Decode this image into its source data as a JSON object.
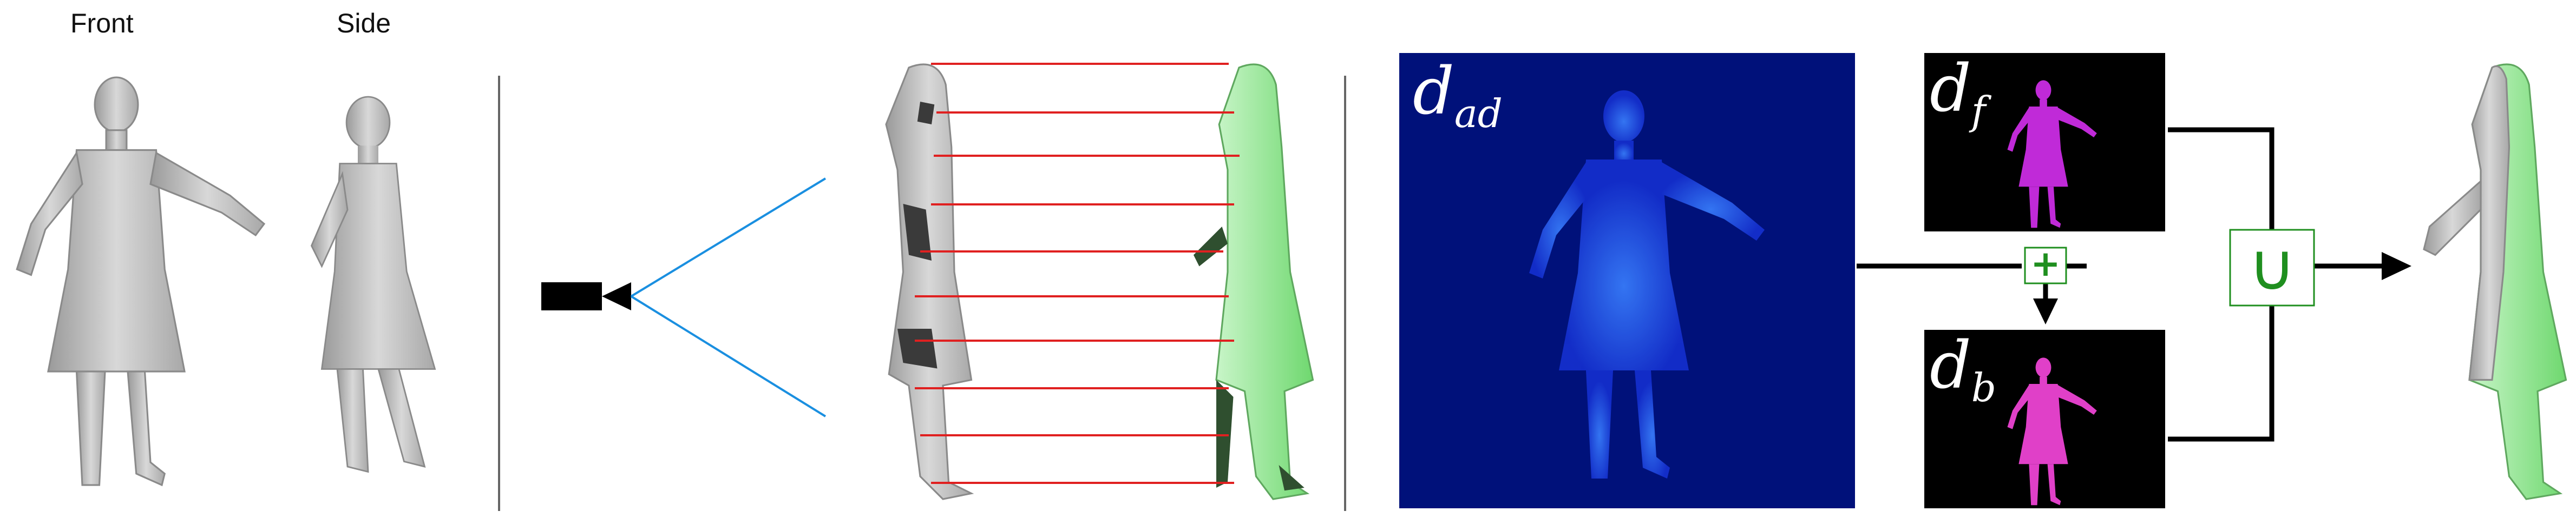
{
  "labels": {
    "front": "Front",
    "side": "Side"
  },
  "depth_maps": {
    "adjusted": {
      "symbol": "d",
      "subscript": "ad"
    },
    "front": {
      "symbol": "d",
      "subscript": "f"
    },
    "back": {
      "symbol": "d",
      "subscript": "b"
    }
  },
  "operators": {
    "plus": "+",
    "union": "∪"
  },
  "colors": {
    "mesh_gray": "#bfbfbf",
    "mesh_green": "#8fe88f",
    "ray_red": "#e02020",
    "camera_line": "#1a8fe0",
    "depth_bg": "#00117a",
    "depth_body": "#1a4dff",
    "silhouette_front": "#c02ad8",
    "silhouette_back": "#e040c8",
    "operator_green": "#1f8f1f"
  }
}
